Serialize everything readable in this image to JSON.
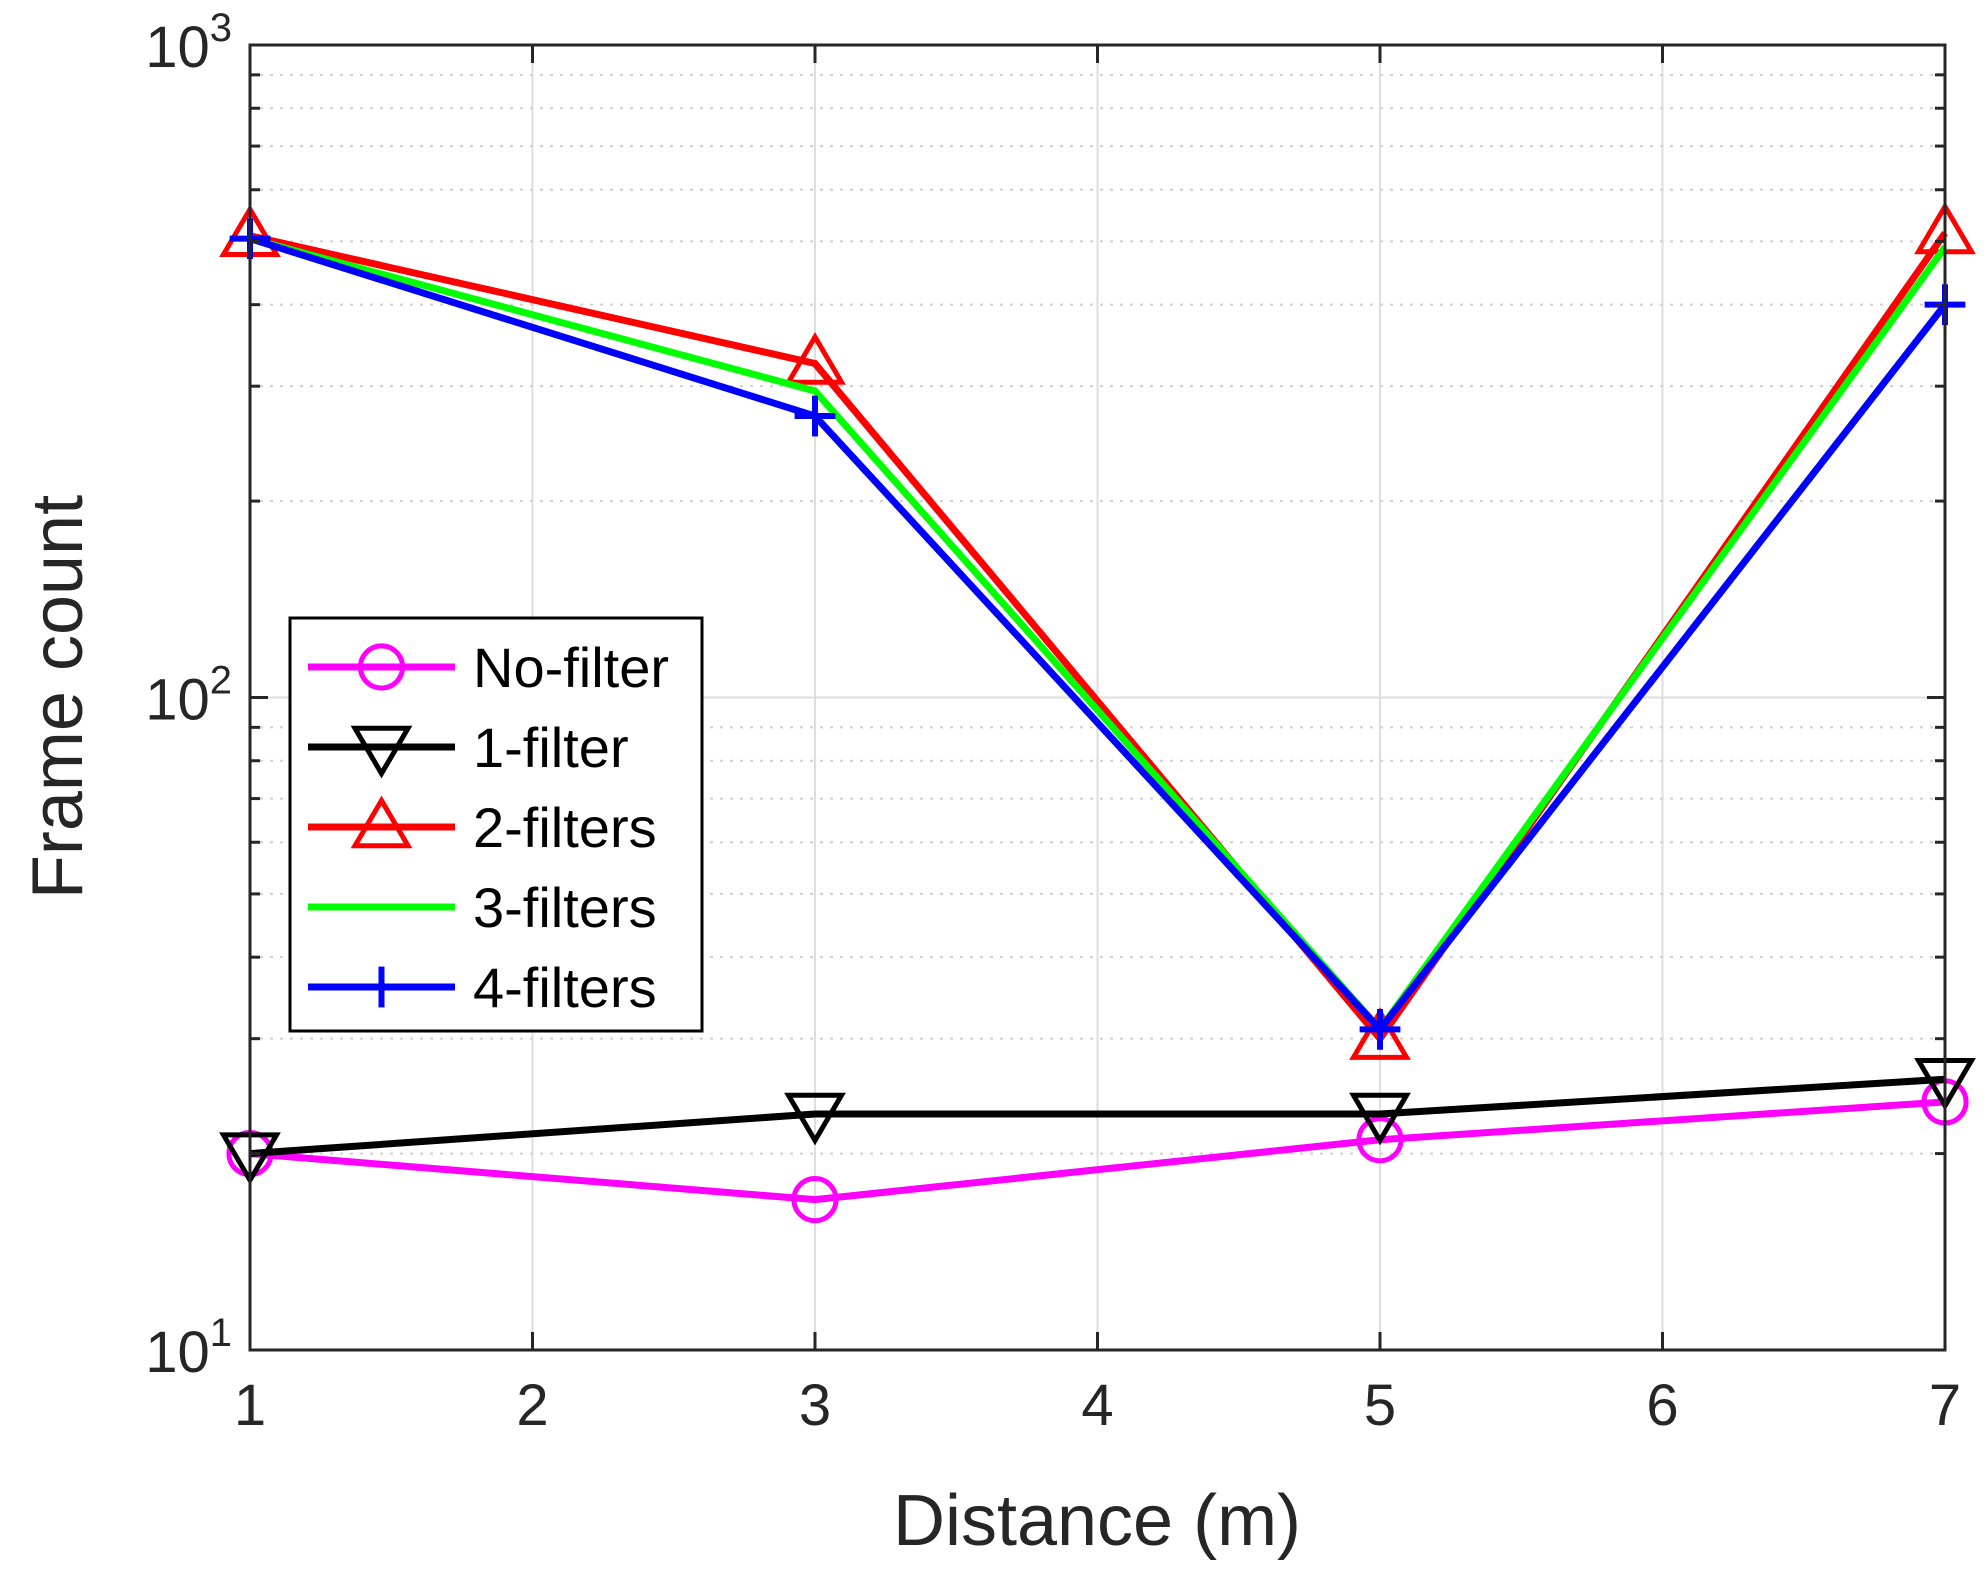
{
  "chart_data": {
    "type": "line",
    "title": "",
    "xlabel": "Distance (m)",
    "ylabel": "Frame count",
    "xlim": [
      1,
      7
    ],
    "ylim": [
      10,
      1000
    ],
    "yscale": "log",
    "grid": true,
    "x_ticks": [
      "1",
      "2",
      "3",
      "4",
      "5",
      "6",
      "7"
    ],
    "y_ticks": [
      {
        "base": "10",
        "exp": "1"
      },
      {
        "base": "10",
        "exp": "2"
      },
      {
        "base": "10",
        "exp": "3"
      }
    ],
    "x": [
      1,
      3,
      5,
      7
    ],
    "series": [
      {
        "name": "No-filter",
        "color": "#ff00ff",
        "marker": "circle",
        "values": [
          20,
          17,
          21,
          24
        ]
      },
      {
        "name": "1-filter",
        "color": "#000000",
        "marker": "triangle-down",
        "values": [
          20,
          23,
          23,
          26
        ]
      },
      {
        "name": "2-filters",
        "color": "#ff0000",
        "marker": "triangle-up",
        "values": [
          510,
          325,
          30,
          515
        ]
      },
      {
        "name": "3-filters",
        "color": "#00ff00",
        "marker": "none",
        "values": [
          505,
          295,
          31,
          490
        ]
      },
      {
        "name": "4-filters",
        "color": "#0000ff",
        "marker": "plus",
        "values": [
          505,
          270,
          31,
          400
        ]
      }
    ],
    "legend_position": "middle-left"
  }
}
